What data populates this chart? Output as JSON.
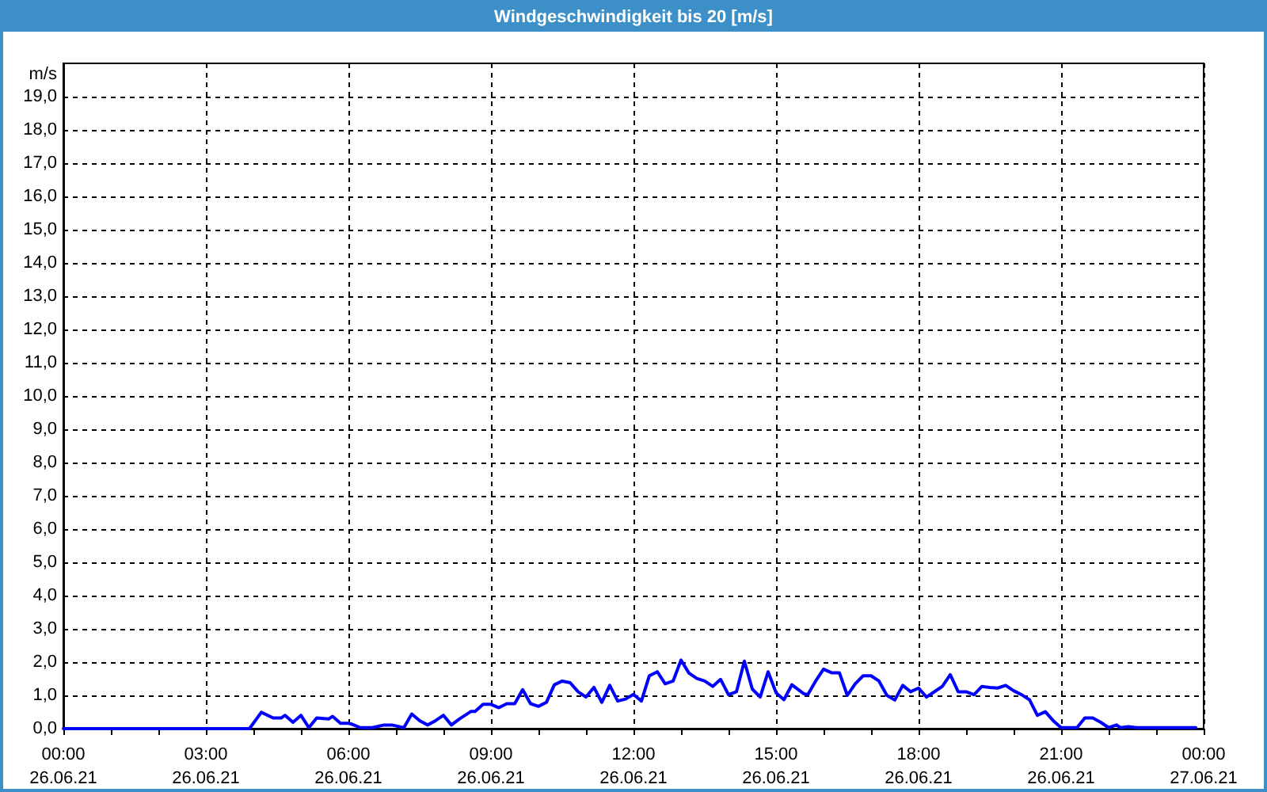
{
  "chart_data": {
    "type": "line",
    "title": "Windgeschwindigkeit bis 20 [m/s]",
    "ylabel": "m/s",
    "color": "#0000ff",
    "x": [
      "--06-26T00:00",
      "--06-26T03:55",
      "--06-26T04:10",
      "--06-26T04:25",
      "--06-26T04:35",
      "--06-26T04:40",
      "--06-26T04:50",
      "--06-26T05:00",
      "--06-26T05:10",
      "--06-26T05:20",
      "--06-26T05:35",
      "--06-26T05:40",
      "--06-26T05:50",
      "--06-26T06:00",
      "--06-26T06:05",
      "--06-26T06:15",
      "--06-26T06:30",
      "--06-26T06:45",
      "--06-26T06:55",
      "--06-26T07:10",
      "--06-26T07:20",
      "--06-26T07:30",
      "--06-26T07:40",
      "--06-26T07:50",
      "--06-26T08:00",
      "--06-26T08:10",
      "--06-26T08:20",
      "--06-26T08:35",
      "--06-26T08:40",
      "--06-26T08:50",
      "--06-26T09:00",
      "--06-26T09:10",
      "--06-26T09:20",
      "--06-26T09:30",
      "--06-26T09:40",
      "--06-26T09:50",
      "--06-26T10:00",
      "--06-26T10:10",
      "--06-26T10:20",
      "--06-26T10:30",
      "--06-26T10:40",
      "--06-26T10:50",
      "--06-26T11:00",
      "--06-26T11:10",
      "--06-26T11:20",
      "--06-26T11:30",
      "--06-26T11:40",
      "--06-26T11:50",
      "--06-26T12:00",
      "--06-26T12:10",
      "--06-26T12:20",
      "--06-26T12:30",
      "--06-26T12:40",
      "--06-26T12:50",
      "--06-26T13:00",
      "--06-26T13:10",
      "--06-26T13:20",
      "--06-26T13:30",
      "--06-26T13:40",
      "--06-26T13:50",
      "--06-26T14:00",
      "--06-26T14:10",
      "--06-26T14:20",
      "--06-26T14:30",
      "--06-26T14:40",
      "--06-26T14:50",
      "--06-26T15:00",
      "--06-26T15:10",
      "--06-26T15:20",
      "--06-26T15:35",
      "--06-26T15:40",
      "--06-26T15:50",
      "--06-26T16:00",
      "--06-26T16:10",
      "--06-26T16:20",
      "--06-26T16:30",
      "--06-26T16:40",
      "--06-26T16:50",
      "--06-26T17:00",
      "--06-26T17:10",
      "--06-26T17:20",
      "--06-26T17:30",
      "--06-26T17:40",
      "--06-26T17:50",
      "--06-26T18:00",
      "--06-26T18:10",
      "--06-26T18:25",
      "--06-26T18:30",
      "--06-26T18:40",
      "--06-26T18:50",
      "--06-26T19:00",
      "--06-26T19:10",
      "--06-26T19:20",
      "--06-26T19:30",
      "--06-26T19:40",
      "--06-26T19:50",
      "--06-26T20:00",
      "--06-26T20:10",
      "--06-26T20:20",
      "--06-26T20:30",
      "--06-26T20:40",
      "--06-26T20:50",
      "--06-26T21:00",
      "--06-26T21:20",
      "--06-26T21:30",
      "--06-26T21:40",
      "--06-26T21:50",
      "--06-26T22:00",
      "--06-26T22:10",
      "--06-26T22:15",
      "--06-26T22:25",
      "--06-26T22:35",
      "--06-26T23:50"
    ],
    "values": [
      0,
      0,
      0.49,
      0.32,
      0.32,
      0.4,
      0.19,
      0.4,
      0.03,
      0.32,
      0.29,
      0.37,
      0.16,
      0.16,
      0.13,
      0.03,
      0.03,
      0.11,
      0.11,
      0.03,
      0.44,
      0.24,
      0.11,
      0.24,
      0.4,
      0.11,
      0.29,
      0.52,
      0.52,
      0.73,
      0.73,
      0.63,
      0.75,
      0.75,
      1.17,
      0.75,
      0.67,
      0.79,
      1.32,
      1.43,
      1.38,
      1.11,
      0.95,
      1.24,
      0.79,
      1.3,
      0.83,
      0.89,
      1.03,
      0.83,
      1.59,
      1.71,
      1.35,
      1.43,
      2.06,
      1.67,
      1.51,
      1.43,
      1.27,
      1.48,
      1.02,
      1.11,
      2.03,
      1.19,
      0.95,
      1.71,
      1.08,
      0.87,
      1.32,
      1.05,
      1.02,
      1.43,
      1.79,
      1.68,
      1.68,
      1.0,
      1.35,
      1.59,
      1.59,
      1.43,
      1.0,
      0.86,
      1.3,
      1.11,
      1.22,
      0.95,
      1.19,
      1.27,
      1.62,
      1.11,
      1.11,
      1.02,
      1.27,
      1.24,
      1.22,
      1.3,
      1.14,
      1.02,
      0.87,
      0.4,
      0.51,
      0.24,
      0.03,
      0.03,
      0.32,
      0.32,
      0.19,
      0.03,
      0.11,
      0.03,
      0.06,
      0.03,
      0.03
    ],
    "xlim": [
      "--06-26T00:00",
      "--06-27T00:00"
    ],
    "xticks": [
      {
        "value": "--06-26T00:00",
        "label": "00:00\n26.06.21"
      },
      {
        "value": "--06-26T01:00",
        "label": null
      },
      {
        "value": "--06-26T02:00",
        "label": null
      },
      {
        "value": "--06-26T03:00",
        "label": "03:00\n26.06.21"
      },
      {
        "value": "--06-26T04:00",
        "label": null
      },
      {
        "value": "--06-26T05:00",
        "label": null
      },
      {
        "value": "--06-26T06:00",
        "label": "06:00\n26.06.21"
      },
      {
        "value": "--06-26T07:00",
        "label": null
      },
      {
        "value": "--06-26T08:00",
        "label": null
      },
      {
        "value": "--06-26T09:00",
        "label": "09:00\n26.06.21"
      },
      {
        "value": "--06-26T10:00",
        "label": null
      },
      {
        "value": "--06-26T11:00",
        "label": null
      },
      {
        "value": "--06-26T12:00",
        "label": "12:00\n26.06.21"
      },
      {
        "value": "--06-26T13:00",
        "label": null
      },
      {
        "value": "--06-26T14:00",
        "label": null
      },
      {
        "value": "--06-26T15:00",
        "label": "15:00\n26.06.21"
      },
      {
        "value": "--06-26T16:00",
        "label": null
      },
      {
        "value": "--06-26T17:00",
        "label": null
      },
      {
        "value": "--06-26T18:00",
        "label": "18:00\n26.06.21"
      },
      {
        "value": "--06-26T19:00",
        "label": null
      },
      {
        "value": "--06-26T20:00",
        "label": null
      },
      {
        "value": "--06-26T21:00",
        "label": "21:00\n26.06.21"
      },
      {
        "value": "--06-26T22:00",
        "label": null
      },
      {
        "value": "--06-26T23:00",
        "label": null
      },
      {
        "value": "--06-27T00:00",
        "label": "00:00\n27.06.21"
      }
    ],
    "ylim": [
      0,
      20
    ],
    "yticks": [
      {
        "value": 0,
        "label": "0,0"
      },
      {
        "value": 1,
        "label": "1,0"
      },
      {
        "value": 2,
        "label": "2,0"
      },
      {
        "value": 3,
        "label": "3,0"
      },
      {
        "value": 4,
        "label": "4,0"
      },
      {
        "value": 5,
        "label": "5,0"
      },
      {
        "value": 6,
        "label": "6,0"
      },
      {
        "value": 7,
        "label": "7,0"
      },
      {
        "value": 8,
        "label": "8,0"
      },
      {
        "value": 9,
        "label": "9,0"
      },
      {
        "value": 10,
        "label": "10,0"
      },
      {
        "value": 11,
        "label": "11,0"
      },
      {
        "value": 12,
        "label": "12,0"
      },
      {
        "value": 13,
        "label": "13,0"
      },
      {
        "value": 14,
        "label": "14,0"
      },
      {
        "value": 15,
        "label": "15,0"
      },
      {
        "value": 16,
        "label": "16,0"
      },
      {
        "value": 17,
        "label": "17,0"
      },
      {
        "value": 18,
        "label": "18,0"
      },
      {
        "value": 19,
        "label": "19,0"
      }
    ],
    "grid": true
  }
}
